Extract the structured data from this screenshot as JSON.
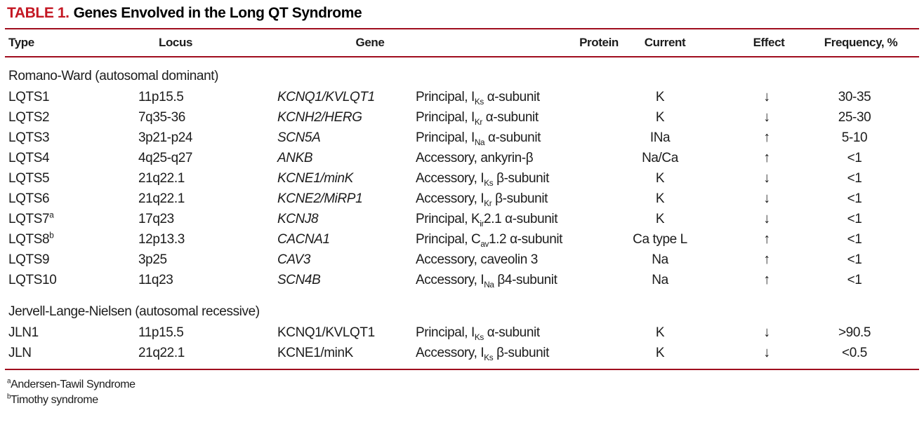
{
  "colors": {
    "accent_red": "#c41723",
    "rule_red": "#a00d1e"
  },
  "caption": {
    "table_number": "TABLE 1.",
    "title": "Genes Envolved in the Long QT Syndrome"
  },
  "columns": {
    "type": "Type",
    "locus": "Locus",
    "gene": "Gene",
    "protein": "Protein",
    "current": "Current",
    "effect": "Effect",
    "frequency": "Frequency, %"
  },
  "sections": [
    {
      "header": "Romano-Ward (autosomal dominant)",
      "rows": [
        {
          "type": "LQTS1",
          "locus": "11p15.5",
          "gene": "KCNQ1/KVLQT1",
          "protein": "Principal, I~Ks~ α-subunit",
          "current": "K",
          "effect": "↓",
          "frequency": "30-35"
        },
        {
          "type": "LQTS2",
          "locus": "7q35-36",
          "gene": "KCNH2/HERG",
          "protein": "Principal, I~Kr~ α-subunit",
          "current": "K",
          "effect": "↓",
          "frequency": "25-30"
        },
        {
          "type": "LQTS3",
          "locus": "3p21-p24",
          "gene": "SCN5A",
          "protein": "Principal, I~Na~ α-subunit",
          "current": "INa",
          "effect": "↑",
          "frequency": "5-10"
        },
        {
          "type": "LQTS4",
          "locus": "4q25-q27",
          "gene": "ANKB",
          "protein": "Accessory, ankyrin-β",
          "current": "Na/Ca",
          "effect": "↑",
          "frequency": "<1"
        },
        {
          "type": "LQTS5",
          "locus": "21q22.1",
          "gene": "KCNE1/minK",
          "protein": "Accessory, I~Ks~ β-subunit",
          "current": "K",
          "effect": "↓",
          "frequency": "<1"
        },
        {
          "type": "LQTS6",
          "locus": "21q22.1",
          "gene": "KCNE2/MiRP1",
          "protein": "Accessory, I~Kr~ β-subunit",
          "current": "K",
          "effect": "↓",
          "frequency": "<1"
        },
        {
          "type": "LQTS7^a^",
          "locus": "17q23",
          "gene": "KCNJ8",
          "protein": "Principal, K~ir~2.1 α-subunit",
          "current": "K",
          "effect": "↓",
          "frequency": "<1"
        },
        {
          "type": "LQTS8^b^",
          "locus": "12p13.3",
          "gene": "CACNA1",
          "protein": "Principal, C~av~1.2 α-subunit",
          "current": "Ca type L",
          "effect": "↑",
          "frequency": "<1"
        },
        {
          "type": "LQTS9",
          "locus": "3p25",
          "gene": "CAV3",
          "protein": "Accessory, caveolin 3",
          "current": "Na",
          "effect": "↑",
          "frequency": "<1"
        },
        {
          "type": "LQTS10",
          "locus": "11q23",
          "gene": "SCN4B",
          "protein": "Accessory, I~Na~ β4-subunit",
          "current": "Na",
          "effect": "↑",
          "frequency": "<1"
        }
      ]
    },
    {
      "header": "Jervell-Lange-Nielsen (autosomal recessive)",
      "rows": [
        {
          "type": "JLN1",
          "locus": "11p15.5",
          "gene": "KCNQ1/KVLQT1",
          "protein": "Principal, I~Ks~ α-subunit",
          "current": "K",
          "effect": "↓",
          "frequency": ">90.5"
        },
        {
          "type": "JLN",
          "locus": "21q22.1",
          "gene": "KCNE1/minK",
          "protein": "Accessory, I~Ks~ β-subunit",
          "current": "K",
          "effect": "↓",
          "frequency": "<0.5"
        }
      ]
    }
  ],
  "footnotes": [
    "^a^Andersen-Tawil Syndrome",
    "^b^Timothy syndrome"
  ]
}
